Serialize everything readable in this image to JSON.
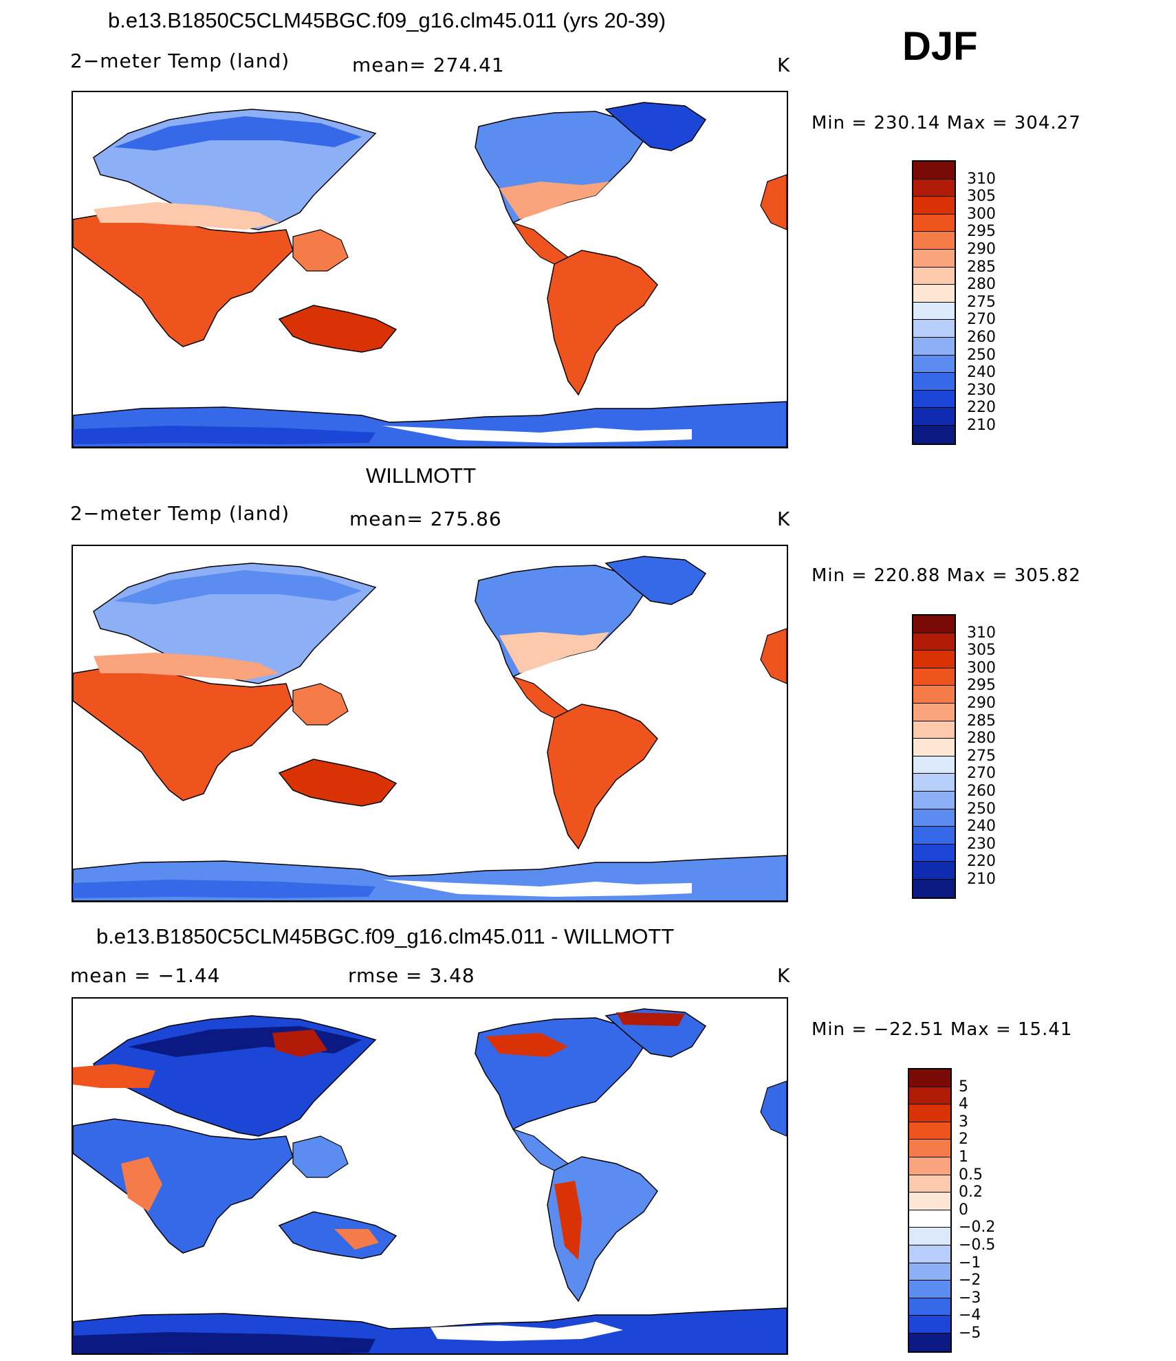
{
  "season": "DJF",
  "unit": "K",
  "panels": [
    {
      "title": "b.e13.B1850C5CLM45BGC.f09_g16.clm45.011 (yrs 20-39)",
      "variable": "2−meter Temp (land)",
      "stat": "mean= 274.41",
      "unit": "K",
      "minmax": "Min  =  230.14  Max  =  304.27",
      "kind": "abs"
    },
    {
      "title": "WILLMOTT",
      "variable": "2−meter Temp (land)",
      "stat": "mean= 275.86",
      "unit": "K",
      "minmax": "Min  =  220.88  Max  =  305.82",
      "kind": "abs"
    },
    {
      "title": "b.e13.B1850C5CLM45BGC.f09_g16.clm45.011 - WILLMOTT",
      "variable": "mean  =     −1.44",
      "stat": "rmse  =      3.48",
      "unit": "K",
      "minmax": "Min  =  −22.51  Max  =     15.41",
      "kind": "diff"
    }
  ],
  "colorbars": {
    "abs": {
      "labels": [
        "310",
        "305",
        "300",
        "295",
        "290",
        "285",
        "280",
        "275",
        "270",
        "260",
        "250",
        "240",
        "230",
        "220",
        "210"
      ],
      "colors": [
        "#7a0a06",
        "#b11a06",
        "#d93305",
        "#f0541e",
        "#f57b48",
        "#f9a47d",
        "#fcc9ac",
        "#fde6d4",
        "#dbe9fb",
        "#b7cdfa",
        "#8daff6",
        "#5b8df0",
        "#3569e8",
        "#1c46d6",
        "#0f2bb0",
        "#0a1a82"
      ]
    },
    "diff": {
      "labels": [
        "5",
        "4",
        "3",
        "2",
        "1",
        "0.5",
        "0.2",
        "0",
        "−0.2",
        "−0.5",
        "−1",
        "−2",
        "−3",
        "−4",
        "−5"
      ],
      "colors": [
        "#7a0a06",
        "#b11a06",
        "#d93305",
        "#f0541e",
        "#f57b48",
        "#f9a47d",
        "#fcc9ac",
        "#fde6d4",
        "#ffffff",
        "#dbe9fb",
        "#b7cdfa",
        "#8daff6",
        "#5b8df0",
        "#3569e8",
        "#1c46d6",
        "#0a1a82"
      ]
    }
  }
}
